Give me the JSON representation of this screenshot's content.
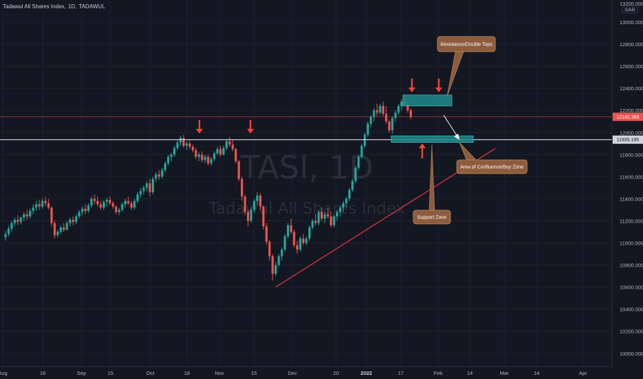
{
  "legend": {
    "symbol": "Tadawul All Shares Index, 1D, TADAWUL",
    "pieces": [
      "Tadawul All Shares Index,",
      "1D,",
      "TADAWUL"
    ]
  },
  "watermark": {
    "ticker": "TASI, 1D",
    "name": "Tadawul All Shares Index"
  },
  "currency": "SAR",
  "colors": {
    "background": "#131722",
    "up": "#26a69a",
    "down": "#ef5350",
    "trendline": "#f23645",
    "arrow": "#f44336",
    "zone": "#1e8a8a",
    "callout": "#8d5c3e",
    "current_price": "#ef5350",
    "horizontal_line": "#e0e3eb"
  },
  "chart_data": {
    "type": "candlestick",
    "title": "",
    "xlabel": "",
    "ylabel": "",
    "x_ticks": [
      "Aug",
      "16",
      "Sep",
      "15",
      "Oct",
      "18",
      "Nov",
      "15",
      "Dec",
      "20",
      "2022",
      "17",
      "Feb",
      "14",
      "Mar",
      "14",
      "Apr"
    ],
    "y_ticks": [
      10000,
      10200,
      10400,
      10600,
      10800,
      11000,
      11200,
      11400,
      11600,
      11800,
      12000,
      12200,
      12400,
      12600,
      12800,
      13000
    ],
    "y_tick_labels": [
      "10000.000",
      "10200.000",
      "10400.000",
      "10600.000",
      "10800.000",
      "11000.000",
      "11200.000",
      "11400.000",
      "11600.000",
      "11800.000",
      "12000.000",
      "12200.000",
      "12400.000",
      "12600.000",
      "12800.000",
      "13000.000"
    ],
    "ylim": [
      9880,
      13200
    ],
    "top_label": "13200.000",
    "current_price": 12142.38,
    "current_price_label": "12142.380",
    "horizontal_level": 11935.19,
    "horizontal_level_label": "11935.195",
    "candles_ohlc": [
      [
        11050,
        11110,
        11020,
        11080
      ],
      [
        11080,
        11150,
        11060,
        11130
      ],
      [
        11130,
        11200,
        11100,
        11180
      ],
      [
        11180,
        11230,
        11150,
        11210
      ],
      [
        11210,
        11250,
        11160,
        11190
      ],
      [
        11190,
        11240,
        11170,
        11230
      ],
      [
        11230,
        11280,
        11200,
        11260
      ],
      [
        11260,
        11300,
        11210,
        11240
      ],
      [
        11240,
        11310,
        11220,
        11290
      ],
      [
        11290,
        11350,
        11260,
        11320
      ],
      [
        11320,
        11380,
        11290,
        11350
      ],
      [
        11350,
        11390,
        11300,
        11330
      ],
      [
        11330,
        11400,
        11310,
        11380
      ],
      [
        11380,
        11420,
        11330,
        11360
      ],
      [
        11360,
        11400,
        11300,
        11320
      ],
      [
        11320,
        11330,
        11150,
        11180
      ],
      [
        11180,
        11200,
        11040,
        11070
      ],
      [
        11070,
        11120,
        11050,
        11100
      ],
      [
        11100,
        11160,
        11080,
        11140
      ],
      [
        11140,
        11180,
        11100,
        11120
      ],
      [
        11120,
        11200,
        11110,
        11180
      ],
      [
        11180,
        11230,
        11150,
        11210
      ],
      [
        11210,
        11240,
        11160,
        11190
      ],
      [
        11190,
        11260,
        11170,
        11240
      ],
      [
        11240,
        11300,
        11220,
        11280
      ],
      [
        11280,
        11330,
        11250,
        11310
      ],
      [
        11310,
        11350,
        11260,
        11290
      ],
      [
        11290,
        11360,
        11270,
        11340
      ],
      [
        11340,
        11420,
        11320,
        11400
      ],
      [
        11400,
        11440,
        11350,
        11380
      ],
      [
        11380,
        11420,
        11330,
        11350
      ],
      [
        11350,
        11380,
        11300,
        11320
      ],
      [
        11320,
        11390,
        11300,
        11370
      ],
      [
        11370,
        11410,
        11330,
        11390
      ],
      [
        11390,
        11420,
        11340,
        11360
      ],
      [
        11360,
        11380,
        11310,
        11330
      ],
      [
        11330,
        11340,
        11260,
        11280
      ],
      [
        11280,
        11320,
        11250,
        11300
      ],
      [
        11300,
        11370,
        11280,
        11350
      ],
      [
        11350,
        11400,
        11320,
        11380
      ],
      [
        11380,
        11420,
        11340,
        11360
      ],
      [
        11360,
        11380,
        11300,
        11320
      ],
      [
        11320,
        11400,
        11300,
        11380
      ],
      [
        11380,
        11460,
        11360,
        11440
      ],
      [
        11440,
        11500,
        11410,
        11470
      ],
      [
        11470,
        11520,
        11440,
        11500
      ],
      [
        11500,
        11560,
        11470,
        11540
      ],
      [
        11540,
        11580,
        11420,
        11460
      ],
      [
        11460,
        11600,
        11440,
        11580
      ],
      [
        11580,
        11640,
        11550,
        11620
      ],
      [
        11620,
        11660,
        11570,
        11600
      ],
      [
        11600,
        11680,
        11580,
        11660
      ],
      [
        11660,
        11740,
        11640,
        11720
      ],
      [
        11720,
        11800,
        11700,
        11780
      ],
      [
        11780,
        11820,
        11740,
        11800
      ],
      [
        11800,
        11880,
        11780,
        11860
      ],
      [
        11860,
        11930,
        11840,
        11910
      ],
      [
        11910,
        11970,
        11880,
        11950
      ],
      [
        11950,
        11980,
        11860,
        11880
      ],
      [
        11880,
        11920,
        11840,
        11900
      ],
      [
        11900,
        11930,
        11850,
        11870
      ],
      [
        11870,
        11890,
        11820,
        11840
      ],
      [
        11840,
        11860,
        11760,
        11780
      ],
      [
        11780,
        11820,
        11740,
        11800
      ],
      [
        11800,
        11830,
        11730,
        11750
      ],
      [
        11750,
        11800,
        11720,
        11780
      ],
      [
        11780,
        11800,
        11700,
        11720
      ],
      [
        11720,
        11780,
        11700,
        11760
      ],
      [
        11760,
        11830,
        11740,
        11810
      ],
      [
        11810,
        11870,
        11790,
        11850
      ],
      [
        11850,
        11880,
        11780,
        11800
      ],
      [
        11800,
        11880,
        11790,
        11860
      ],
      [
        11860,
        11940,
        11840,
        11920
      ],
      [
        11920,
        11960,
        11870,
        11890
      ],
      [
        11890,
        11930,
        11830,
        11850
      ],
      [
        11850,
        11860,
        11720,
        11740
      ],
      [
        11740,
        11750,
        11560,
        11580
      ],
      [
        11580,
        11600,
        11380,
        11420
      ],
      [
        11420,
        11440,
        11250,
        11280
      ],
      [
        11280,
        11300,
        11150,
        11200
      ],
      [
        11200,
        11320,
        11180,
        11300
      ],
      [
        11300,
        11400,
        11280,
        11380
      ],
      [
        11380,
        11460,
        11340,
        11430
      ],
      [
        11430,
        11450,
        11300,
        11330
      ],
      [
        11330,
        11340,
        11120,
        11150
      ],
      [
        11150,
        11180,
        10980,
        11010
      ],
      [
        11010,
        11030,
        10840,
        10880
      ],
      [
        10880,
        10900,
        10660,
        10720
      ],
      [
        10720,
        10830,
        10700,
        10800
      ],
      [
        10800,
        10900,
        10780,
        10880
      ],
      [
        10880,
        10960,
        10840,
        10940
      ],
      [
        10940,
        11080,
        10920,
        11060
      ],
      [
        11060,
        11180,
        11040,
        11160
      ],
      [
        11160,
        11220,
        11080,
        11100
      ],
      [
        11100,
        11120,
        10960,
        10980
      ],
      [
        10980,
        11020,
        10900,
        10940
      ],
      [
        10940,
        11060,
        10920,
        11040
      ],
      [
        11040,
        11080,
        10980,
        11000
      ],
      [
        11000,
        11060,
        10980,
        11040
      ],
      [
        11040,
        11160,
        11020,
        11140
      ],
      [
        11140,
        11220,
        11120,
        11200
      ],
      [
        11200,
        11260,
        11160,
        11180
      ],
      [
        11180,
        11300,
        11160,
        11280
      ],
      [
        11280,
        11320,
        11200,
        11220
      ],
      [
        11220,
        11280,
        11180,
        11260
      ],
      [
        11260,
        11320,
        11220,
        11240
      ],
      [
        11240,
        11280,
        11140,
        11160
      ],
      [
        11160,
        11260,
        11140,
        11240
      ],
      [
        11240,
        11300,
        11200,
        11280
      ],
      [
        11280,
        11340,
        11240,
        11320
      ],
      [
        11320,
        11380,
        11280,
        11360
      ],
      [
        11360,
        11420,
        11320,
        11400
      ],
      [
        11400,
        11500,
        11380,
        11480
      ],
      [
        11480,
        11580,
        11460,
        11560
      ],
      [
        11560,
        11700,
        11540,
        11680
      ],
      [
        11680,
        11800,
        11660,
        11780
      ],
      [
        11780,
        11900,
        11760,
        11880
      ],
      [
        11880,
        12000,
        11860,
        11980
      ],
      [
        11980,
        12100,
        11960,
        12080
      ],
      [
        12080,
        12160,
        12050,
        12140
      ],
      [
        12140,
        12220,
        12100,
        12200
      ],
      [
        12200,
        12260,
        12150,
        12180
      ],
      [
        12180,
        12260,
        12160,
        12240
      ],
      [
        12240,
        12280,
        12150,
        12170
      ],
      [
        12170,
        12240,
        12080,
        12100
      ],
      [
        12100,
        12120,
        12000,
        12020
      ],
      [
        12020,
        12150,
        11990,
        12130
      ],
      [
        12130,
        12200,
        12100,
        12180
      ],
      [
        12180,
        12260,
        12160,
        12240
      ],
      [
        12240,
        12300,
        12200,
        12280
      ],
      [
        12280,
        12330,
        12240,
        12260
      ],
      [
        12260,
        12280,
        12180,
        12200
      ],
      [
        12200,
        12220,
        12120,
        12142
      ]
    ],
    "trendline": {
      "from": {
        "index": 88,
        "value": 10600
      },
      "to": {
        "index": 178,
        "value": 12180
      }
    },
    "zones": [
      {
        "name": "Resistance/Double Tops",
        "from_index": 119,
        "to_index": 134,
        "low": 12240,
        "high": 12340
      },
      {
        "name": "Support Zone",
        "from_index": 115,
        "to_index": 140,
        "low": 11910,
        "high": 11970
      }
    ],
    "annotations": [
      {
        "text": "Resistance/Double Tops"
      },
      {
        "text": "Area of Confluence/Buy Zone"
      },
      {
        "text": "Support Zone"
      }
    ]
  }
}
